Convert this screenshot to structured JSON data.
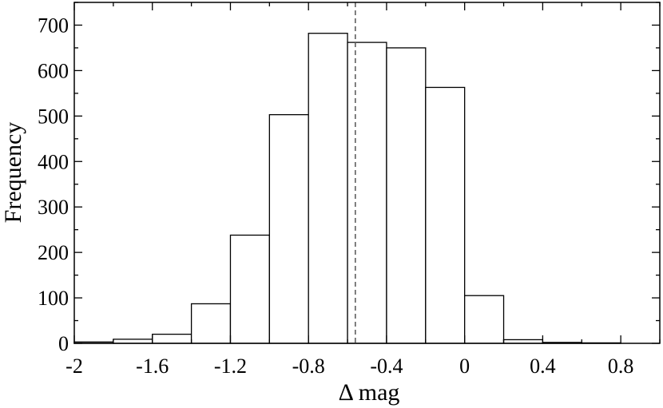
{
  "chart_data": {
    "type": "bar",
    "subtype": "histogram",
    "bin_edges": [
      -2.0,
      -1.8,
      -1.6,
      -1.4,
      -1.2,
      -1.0,
      -0.8,
      -0.6,
      -0.4,
      -0.2,
      0.0,
      0.2,
      0.4,
      0.6,
      0.8
    ],
    "values": [
      3,
      9,
      20,
      87,
      238,
      503,
      682,
      662,
      650,
      563,
      105,
      8,
      2,
      1
    ],
    "reference_line": {
      "x": -0.56,
      "style": "dashed"
    },
    "xlabel": "Δ mag",
    "ylabel": "Frequency",
    "xlim": [
      -2.0,
      1.0
    ],
    "ylim": [
      0,
      750
    ],
    "x_ticks": [
      -2,
      -1.6,
      -1.2,
      -0.8,
      -0.4,
      0,
      0.4,
      0.8
    ],
    "x_tick_labels": [
      "-2",
      "-1.6",
      "-1.2",
      "-0.8",
      "-0.4",
      "0",
      "0.4",
      "0.8"
    ],
    "y_ticks": [
      0,
      100,
      200,
      300,
      400,
      500,
      600,
      700
    ],
    "y_tick_labels": [
      "0",
      "100",
      "200",
      "300",
      "400",
      "500",
      "600",
      "700"
    ],
    "grid": false,
    "legend": "none",
    "colors": {
      "bar_fill": "#ffffff",
      "bar_stroke": "#000000",
      "reference_line": "#555555"
    }
  }
}
